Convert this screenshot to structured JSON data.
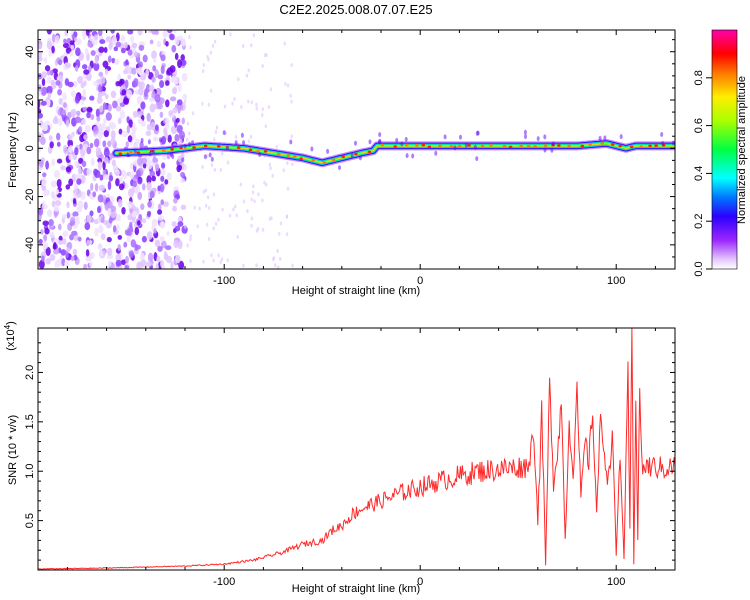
{
  "figure": {
    "title": "C2E2.2025.008.07.07.E25"
  },
  "chart_data": [
    {
      "type": "heatmap",
      "xlabel": "Height of straight line (km)",
      "ylabel": "Frequency (Hz)",
      "xlim": [
        -195,
        130
      ],
      "ylim": [
        -50,
        49
      ],
      "xticks": [
        -100,
        0,
        100
      ],
      "yticks": [
        -40,
        -20,
        0,
        20,
        40
      ],
      "xtick_labels": [
        "-100",
        "0",
        "100"
      ],
      "ytick_labels": [
        "-40",
        "-20",
        "0",
        "20",
        "40"
      ],
      "colorbar": {
        "label": "Normalized spectral amplitude",
        "range": [
          0,
          1
        ],
        "ticks": [
          0.0,
          0.2,
          0.4,
          0.6,
          0.8
        ],
        "tick_labels": [
          "0.0",
          "0.2",
          "0.4",
          "0.6",
          "0.8"
        ],
        "colors": [
          "#ffffff",
          "#9c27ff",
          "#0000ff",
          "#00ffff",
          "#00ff00",
          "#ffff00",
          "#ff0000",
          "#ff00aa"
        ]
      },
      "noise_region_x": [
        -195,
        -120
      ],
      "ridge": {
        "x": [
          -155,
          -130,
          -110,
          -90,
          -75,
          -60,
          -50,
          -40,
          -30,
          -24,
          -22,
          0,
          20,
          40,
          60,
          80,
          95,
          100,
          105,
          110,
          130
        ],
        "frequency": [
          -2,
          -1,
          1,
          0,
          -2,
          -4,
          -6,
          -4,
          -2,
          -1,
          1,
          1,
          1,
          1,
          1,
          1,
          2,
          1,
          0,
          1,
          1
        ]
      }
    },
    {
      "type": "line",
      "xlabel": "Height of straight line (km)",
      "ylabel": "SNR (10 * v/v)",
      "y_multiplier_label": "(x10",
      "y_multiplier_exp": "4",
      "xlim": [
        -195,
        130
      ],
      "ylim": [
        0,
        2.45
      ],
      "xticks": [
        -100,
        0,
        100
      ],
      "yticks": [
        0.5,
        1.0,
        1.5,
        2.0
      ],
      "xtick_labels": [
        "-100",
        "0",
        "100"
      ],
      "ytick_labels": [
        "0.5",
        "1.0",
        "1.5",
        "2.0"
      ],
      "series": [
        {
          "color": "#ff2a2a",
          "x": [
            -195,
            -160,
            -140,
            -120,
            -100,
            -85,
            -70,
            -60,
            -50,
            -45,
            -40,
            -35,
            -30,
            -20,
            -10,
            0,
            10,
            20,
            30,
            40,
            50,
            55,
            58,
            60,
            62,
            64,
            66,
            68,
            70,
            72,
            74,
            76,
            78,
            80,
            82,
            84,
            86,
            88,
            90,
            92,
            94,
            96,
            98,
            100,
            102,
            104,
            106,
            107,
            108,
            109,
            110,
            111,
            112,
            113,
            114,
            115,
            120,
            125,
            130
          ],
          "y": [
            0.01,
            0.02,
            0.03,
            0.04,
            0.06,
            0.1,
            0.18,
            0.26,
            0.3,
            0.4,
            0.45,
            0.56,
            0.62,
            0.7,
            0.78,
            0.84,
            0.9,
            0.95,
            1.0,
            1.02,
            1.04,
            1.05,
            1.4,
            0.5,
            1.6,
            0.05,
            1.9,
            0.9,
            1.2,
            1.7,
            0.3,
            1.5,
            1.0,
            1.8,
            0.7,
            1.3,
            1.1,
            1.6,
            0.6,
            1.5,
            1.2,
            0.9,
            1.4,
            0.15,
            1.2,
            0.1,
            2.0,
            0.4,
            2.45,
            0.06,
            1.8,
            0.3,
            1.9,
            1.06,
            1.02,
            1.05,
            1.04,
            1.03,
            1.05
          ]
        }
      ]
    }
  ]
}
